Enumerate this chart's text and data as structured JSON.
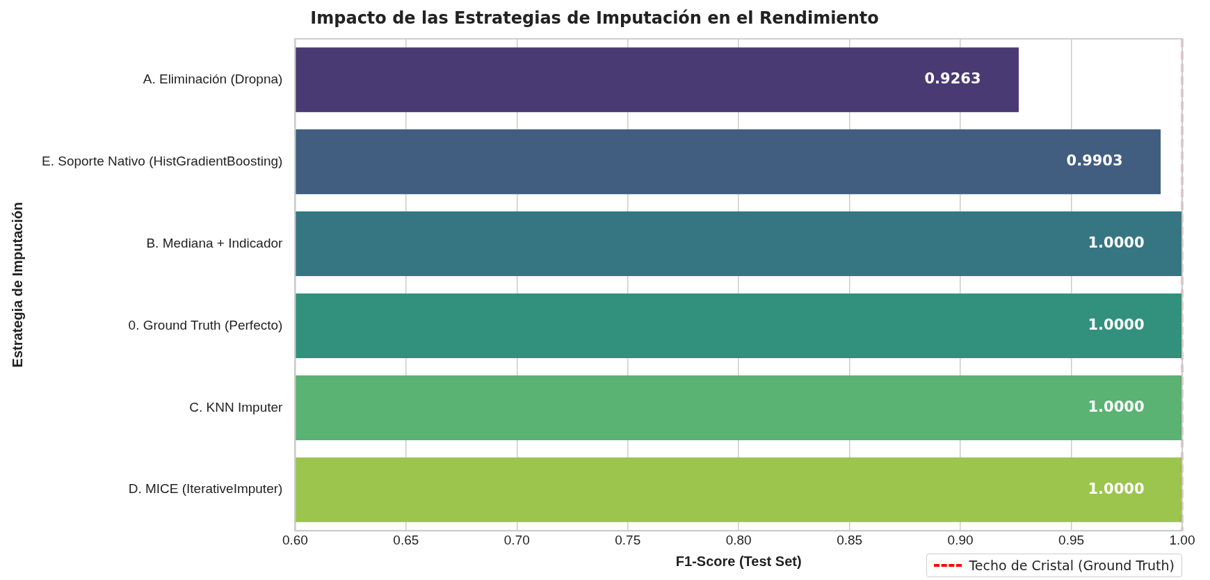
{
  "chart_data": {
    "type": "bar",
    "orientation": "horizontal",
    "title": "Impacto de las Estrategias de Imputación en el Rendimiento",
    "xlabel": "F1-Score (Test Set)",
    "ylabel": "Estrategia de Imputación",
    "categories": [
      "A. Eliminación (Dropna)",
      "E. Soporte Nativo (HistGradientBoosting)",
      "B. Mediana + Indicador",
      "0. Ground Truth (Perfecto)",
      "C. KNN Imputer",
      "D. MICE (IterativeImputer)"
    ],
    "values": [
      0.9263,
      0.9903,
      1.0,
      1.0,
      1.0,
      1.0
    ],
    "value_labels": [
      "0.9263",
      "0.9903",
      "1.0000",
      "1.0000",
      "1.0000",
      "1.0000"
    ],
    "colors": [
      "#4a3a73",
      "#415e80",
      "#357682",
      "#32917c",
      "#5ab273",
      "#9bc54c"
    ],
    "xlim": [
      0.6,
      1.0
    ],
    "xticks": [
      {
        "value": 0.6,
        "label": "0.60"
      },
      {
        "value": 0.65,
        "label": "0.65"
      },
      {
        "value": 0.7,
        "label": "0.70"
      },
      {
        "value": 0.75,
        "label": "0.75"
      },
      {
        "value": 0.8,
        "label": "0.80"
      },
      {
        "value": 0.85,
        "label": "0.85"
      },
      {
        "value": 0.9,
        "label": "0.90"
      },
      {
        "value": 0.95,
        "label": "0.95"
      },
      {
        "value": 1.0,
        "label": "1.00"
      }
    ],
    "ref_lines": [
      {
        "axis": "x",
        "value": 1.0,
        "label": "Techo de Cristal (Ground Truth)",
        "color": "#ff0000",
        "line_style": "dashed"
      }
    ],
    "grid": "x",
    "legend": "bottom right"
  }
}
